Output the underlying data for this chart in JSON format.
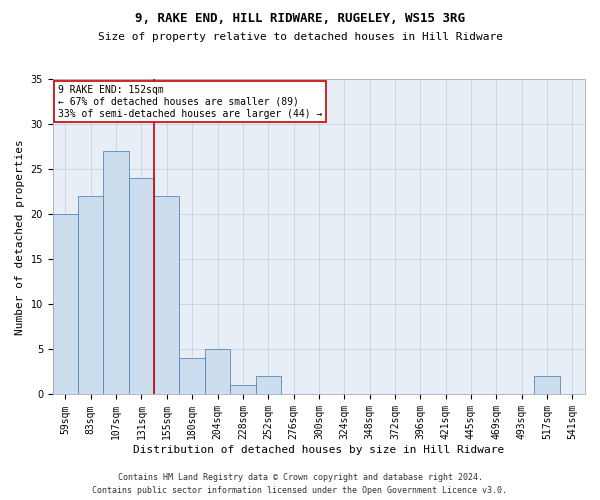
{
  "title": "9, RAKE END, HILL RIDWARE, RUGELEY, WS15 3RG",
  "subtitle": "Size of property relative to detached houses in Hill Ridware",
  "xlabel": "Distribution of detached houses by size in Hill Ridware",
  "ylabel": "Number of detached properties",
  "footnote1": "Contains HM Land Registry data © Crown copyright and database right 2024.",
  "footnote2": "Contains public sector information licensed under the Open Government Licence v3.0.",
  "categories": [
    "59sqm",
    "83sqm",
    "107sqm",
    "131sqm",
    "155sqm",
    "180sqm",
    "204sqm",
    "228sqm",
    "252sqm",
    "276sqm",
    "300sqm",
    "324sqm",
    "348sqm",
    "372sqm",
    "396sqm",
    "421sqm",
    "445sqm",
    "469sqm",
    "493sqm",
    "517sqm",
    "541sqm"
  ],
  "values": [
    20,
    22,
    27,
    24,
    22,
    4,
    5,
    1,
    2,
    0,
    0,
    0,
    0,
    0,
    0,
    0,
    0,
    0,
    0,
    2,
    0
  ],
  "bar_color": "#ccdded",
  "bar_edge_color": "#5588bb",
  "marker_label": "9 RAKE END: 152sqm",
  "annotation_line1": "← 67% of detached houses are smaller (89)",
  "annotation_line2": "33% of semi-detached houses are larger (44) →",
  "ylim": [
    0,
    35
  ],
  "yticks": [
    0,
    5,
    10,
    15,
    20,
    25,
    30,
    35
  ],
  "background_color": "#ffffff",
  "grid_color": "#c8d0e0",
  "annotation_box_color": "#ffffff",
  "annotation_box_edge_color": "#cc0000",
  "marker_line_color": "#cc0000",
  "title_fontsize": 9,
  "subtitle_fontsize": 8,
  "axis_label_fontsize": 8,
  "tick_fontsize": 7,
  "annotation_fontsize": 7,
  "footnote_fontsize": 6
}
